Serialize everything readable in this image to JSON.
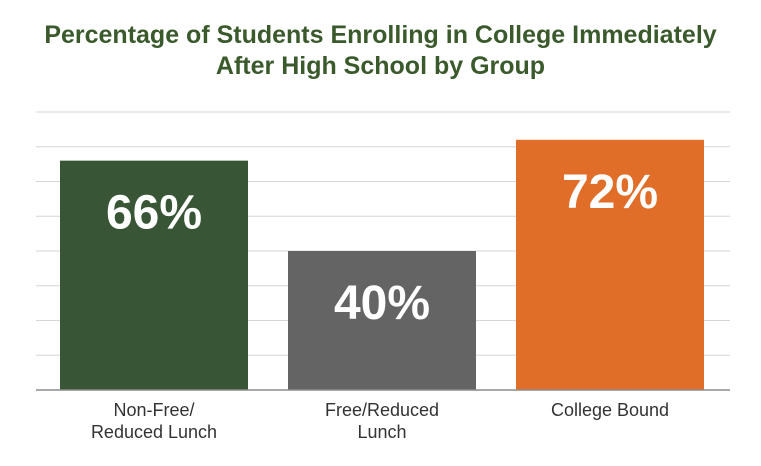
{
  "chart_data": {
    "type": "bar",
    "title": [
      "Percentage of Students Enrolling in College Immediately",
      "After High School by Group"
    ],
    "categories": [
      [
        "Non-Free/",
        "Reduced Lunch"
      ],
      [
        "Free/Reduced",
        "Lunch"
      ],
      [
        "College Bound"
      ]
    ],
    "values": [
      66,
      40,
      72
    ],
    "data_labels": [
      "66%",
      "40%",
      "72%"
    ],
    "colors": [
      "#385536",
      "#646464",
      "#e06e28"
    ],
    "ylim": [
      0,
      80
    ],
    "grid": true,
    "legend": "none"
  }
}
